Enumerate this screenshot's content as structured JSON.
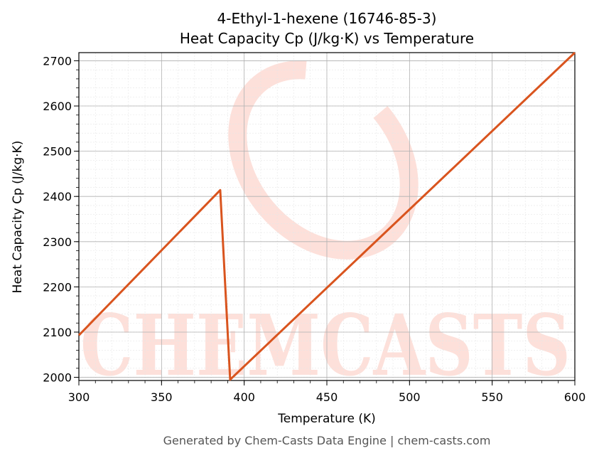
{
  "chart_data": {
    "type": "line",
    "title": "4-Ethyl-1-hexene (16746-85-3)",
    "subtitle": "Heat Capacity Cp (J/kg·K) vs Temperature",
    "xlabel": "Temperature (K)",
    "ylabel": "Heat Capacity Cp (J/kg·K)",
    "xlim": [
      300,
      600
    ],
    "ylim": [
      1993,
      2718
    ],
    "x_ticks": [
      300,
      350,
      400,
      450,
      500,
      550,
      600
    ],
    "y_ticks": [
      2000,
      2100,
      2200,
      2300,
      2400,
      2500,
      2600,
      2700
    ],
    "grid": true,
    "line_color": "#d9541e",
    "series": [
      {
        "x": [
          300,
          385.5,
          391.5,
          600
        ],
        "y": [
          2093,
          2414,
          1995,
          2718
        ]
      }
    ]
  },
  "footer": "Generated by Chem-Casts Data Engine | chem-casts.com",
  "watermark": "CHEMCASTS",
  "watermark_color": "#fde0da"
}
